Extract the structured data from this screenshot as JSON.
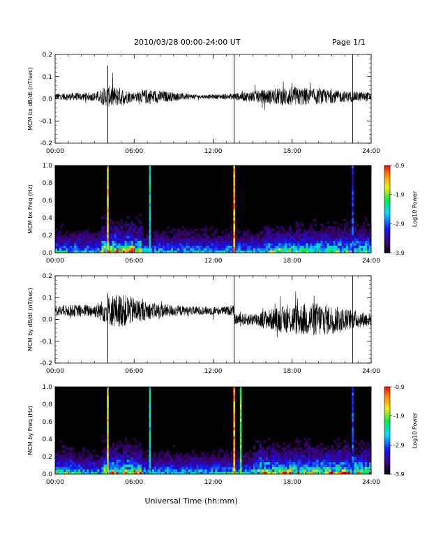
{
  "header": {
    "title": "2010/03/28  00:00-24:00 UT",
    "page": "Page 1/1"
  },
  "footer": {
    "xlabel": "Universal Time (hh:mm)"
  },
  "colorbar": {
    "label": "Log10 Power",
    "ticks": [
      "-0.9",
      "-1.9",
      "-2.9",
      "-3.9"
    ]
  },
  "chart_data": [
    {
      "type": "line",
      "ylabel": "MCM bx dB/dt (nT/sec)",
      "x_ticks": [
        "00:00",
        "06:00",
        "12:00",
        "18:00",
        "24:00"
      ],
      "y_ticks": [
        "-0.2",
        "-0.1",
        "0.0",
        "0.1",
        "0.2"
      ],
      "xlim": [
        0,
        24
      ],
      "ylim": [
        -0.2,
        0.2
      ],
      "baseline": 0.01,
      "noise_profile": [
        [
          0,
          0.015
        ],
        [
          3,
          0.02
        ],
        [
          4.2,
          0.05
        ],
        [
          5,
          0.04
        ],
        [
          6,
          0.02
        ],
        [
          7,
          0.035
        ],
        [
          9,
          0.02
        ],
        [
          11,
          0.008
        ],
        [
          13,
          0.012
        ],
        [
          15,
          0.025
        ],
        [
          18,
          0.045
        ],
        [
          20,
          0.035
        ],
        [
          22,
          0.025
        ],
        [
          24,
          0.02
        ]
      ],
      "spikes": [
        [
          4.0,
          -0.2,
          0.15
        ],
        [
          13.6,
          -0.2,
          0.2
        ],
        [
          22.6,
          -0.2,
          0.2
        ]
      ]
    },
    {
      "type": "heatmap",
      "ylabel": "MCM bx Freq (Hz)",
      "x_ticks": [
        "00:00",
        "06:00",
        "12:00",
        "18:00",
        "24:00"
      ],
      "y_ticks": [
        "0.0",
        "0.2",
        "0.4",
        "0.6",
        "0.8",
        "1.0"
      ],
      "xlim": [
        0,
        24
      ],
      "ylim": [
        0,
        1.0
      ],
      "zlim": [
        -3.9,
        -0.9
      ],
      "bright_columns": [
        [
          4.0,
          -1.5
        ],
        [
          7.2,
          -2.4
        ],
        [
          13.6,
          -1.3
        ],
        [
          22.6,
          -3.1
        ]
      ],
      "active_periods": [
        [
          3.5,
          6.5,
          0.5
        ],
        [
          16,
          24,
          0.35
        ]
      ]
    },
    {
      "type": "line",
      "ylabel": "MCM by dB/dt (nT/sec)",
      "x_ticks": [
        "00:00",
        "06:00",
        "12:00",
        "18:00",
        "24:00"
      ],
      "y_ticks": [
        "-0.2",
        "-0.1",
        "0.0",
        "0.1",
        "0.2"
      ],
      "xlim": [
        0,
        24
      ],
      "ylim": [
        -0.2,
        0.2
      ],
      "baseline": 0.04,
      "baseline_after": [
        13.6,
        0.0
      ],
      "noise_profile": [
        [
          0,
          0.025
        ],
        [
          3,
          0.03
        ],
        [
          4.5,
          0.08
        ],
        [
          5.5,
          0.07
        ],
        [
          7,
          0.04
        ],
        [
          10,
          0.02
        ],
        [
          13,
          0.02
        ],
        [
          15,
          0.03
        ],
        [
          18,
          0.07
        ],
        [
          20,
          0.08
        ],
        [
          22,
          0.05
        ],
        [
          24,
          0.03
        ]
      ],
      "spikes": [
        [
          4.0,
          -0.2,
          0.12
        ],
        [
          13.6,
          -0.2,
          0.2
        ],
        [
          22.6,
          -0.2,
          0.2
        ]
      ]
    },
    {
      "type": "heatmap",
      "ylabel": "MCM by Freq (Hz)",
      "x_ticks": [
        "00:00",
        "06:00",
        "12:00",
        "18:00",
        "24:00"
      ],
      "y_ticks": [
        "0.0",
        "0.2",
        "0.4",
        "0.6",
        "0.8",
        "1.0"
      ],
      "xlim": [
        0,
        24
      ],
      "ylim": [
        0,
        1.0
      ],
      "zlim": [
        -3.9,
        -0.9
      ],
      "bright_columns": [
        [
          4.0,
          -1.6
        ],
        [
          7.2,
          -2.4
        ],
        [
          13.6,
          -1.4
        ],
        [
          14.1,
          -2.0
        ],
        [
          22.6,
          -3.0
        ]
      ],
      "active_periods": [
        [
          0,
          1.5,
          0.3
        ],
        [
          3.5,
          6.5,
          0.45
        ],
        [
          15,
          24,
          0.45
        ]
      ]
    }
  ]
}
